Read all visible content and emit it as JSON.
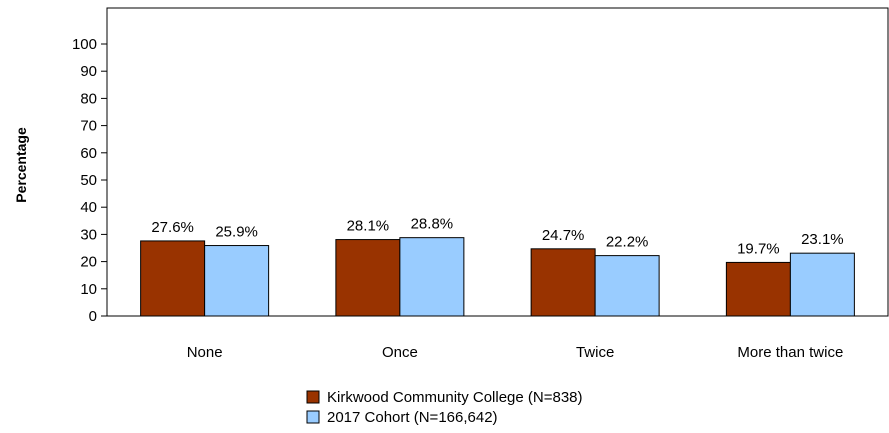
{
  "chart_data": {
    "type": "bar",
    "categories": [
      "None",
      "Once",
      "Twice",
      "More than twice"
    ],
    "series": [
      {
        "name": "Kirkwood Community College (N=838)",
        "color": "#993300",
        "values": [
          27.6,
          28.1,
          24.7,
          19.7
        ],
        "labels": [
          "27.6%",
          "28.1%",
          "24.7%",
          "19.7%"
        ]
      },
      {
        "name": "2017 Cohort (N=166,642)",
        "color": "#99ccff",
        "values": [
          25.9,
          28.8,
          22.2,
          23.1
        ],
        "labels": [
          "25.9%",
          "28.8%",
          "22.2%",
          "23.1%"
        ]
      }
    ],
    "ylabel": "Percentage",
    "ylim": [
      0,
      100
    ],
    "yticks": [
      "0",
      "10",
      "20",
      "30",
      "40",
      "50",
      "60",
      "70",
      "80",
      "90",
      "100"
    ],
    "legend_position": "bottom-center",
    "grid": false
  }
}
